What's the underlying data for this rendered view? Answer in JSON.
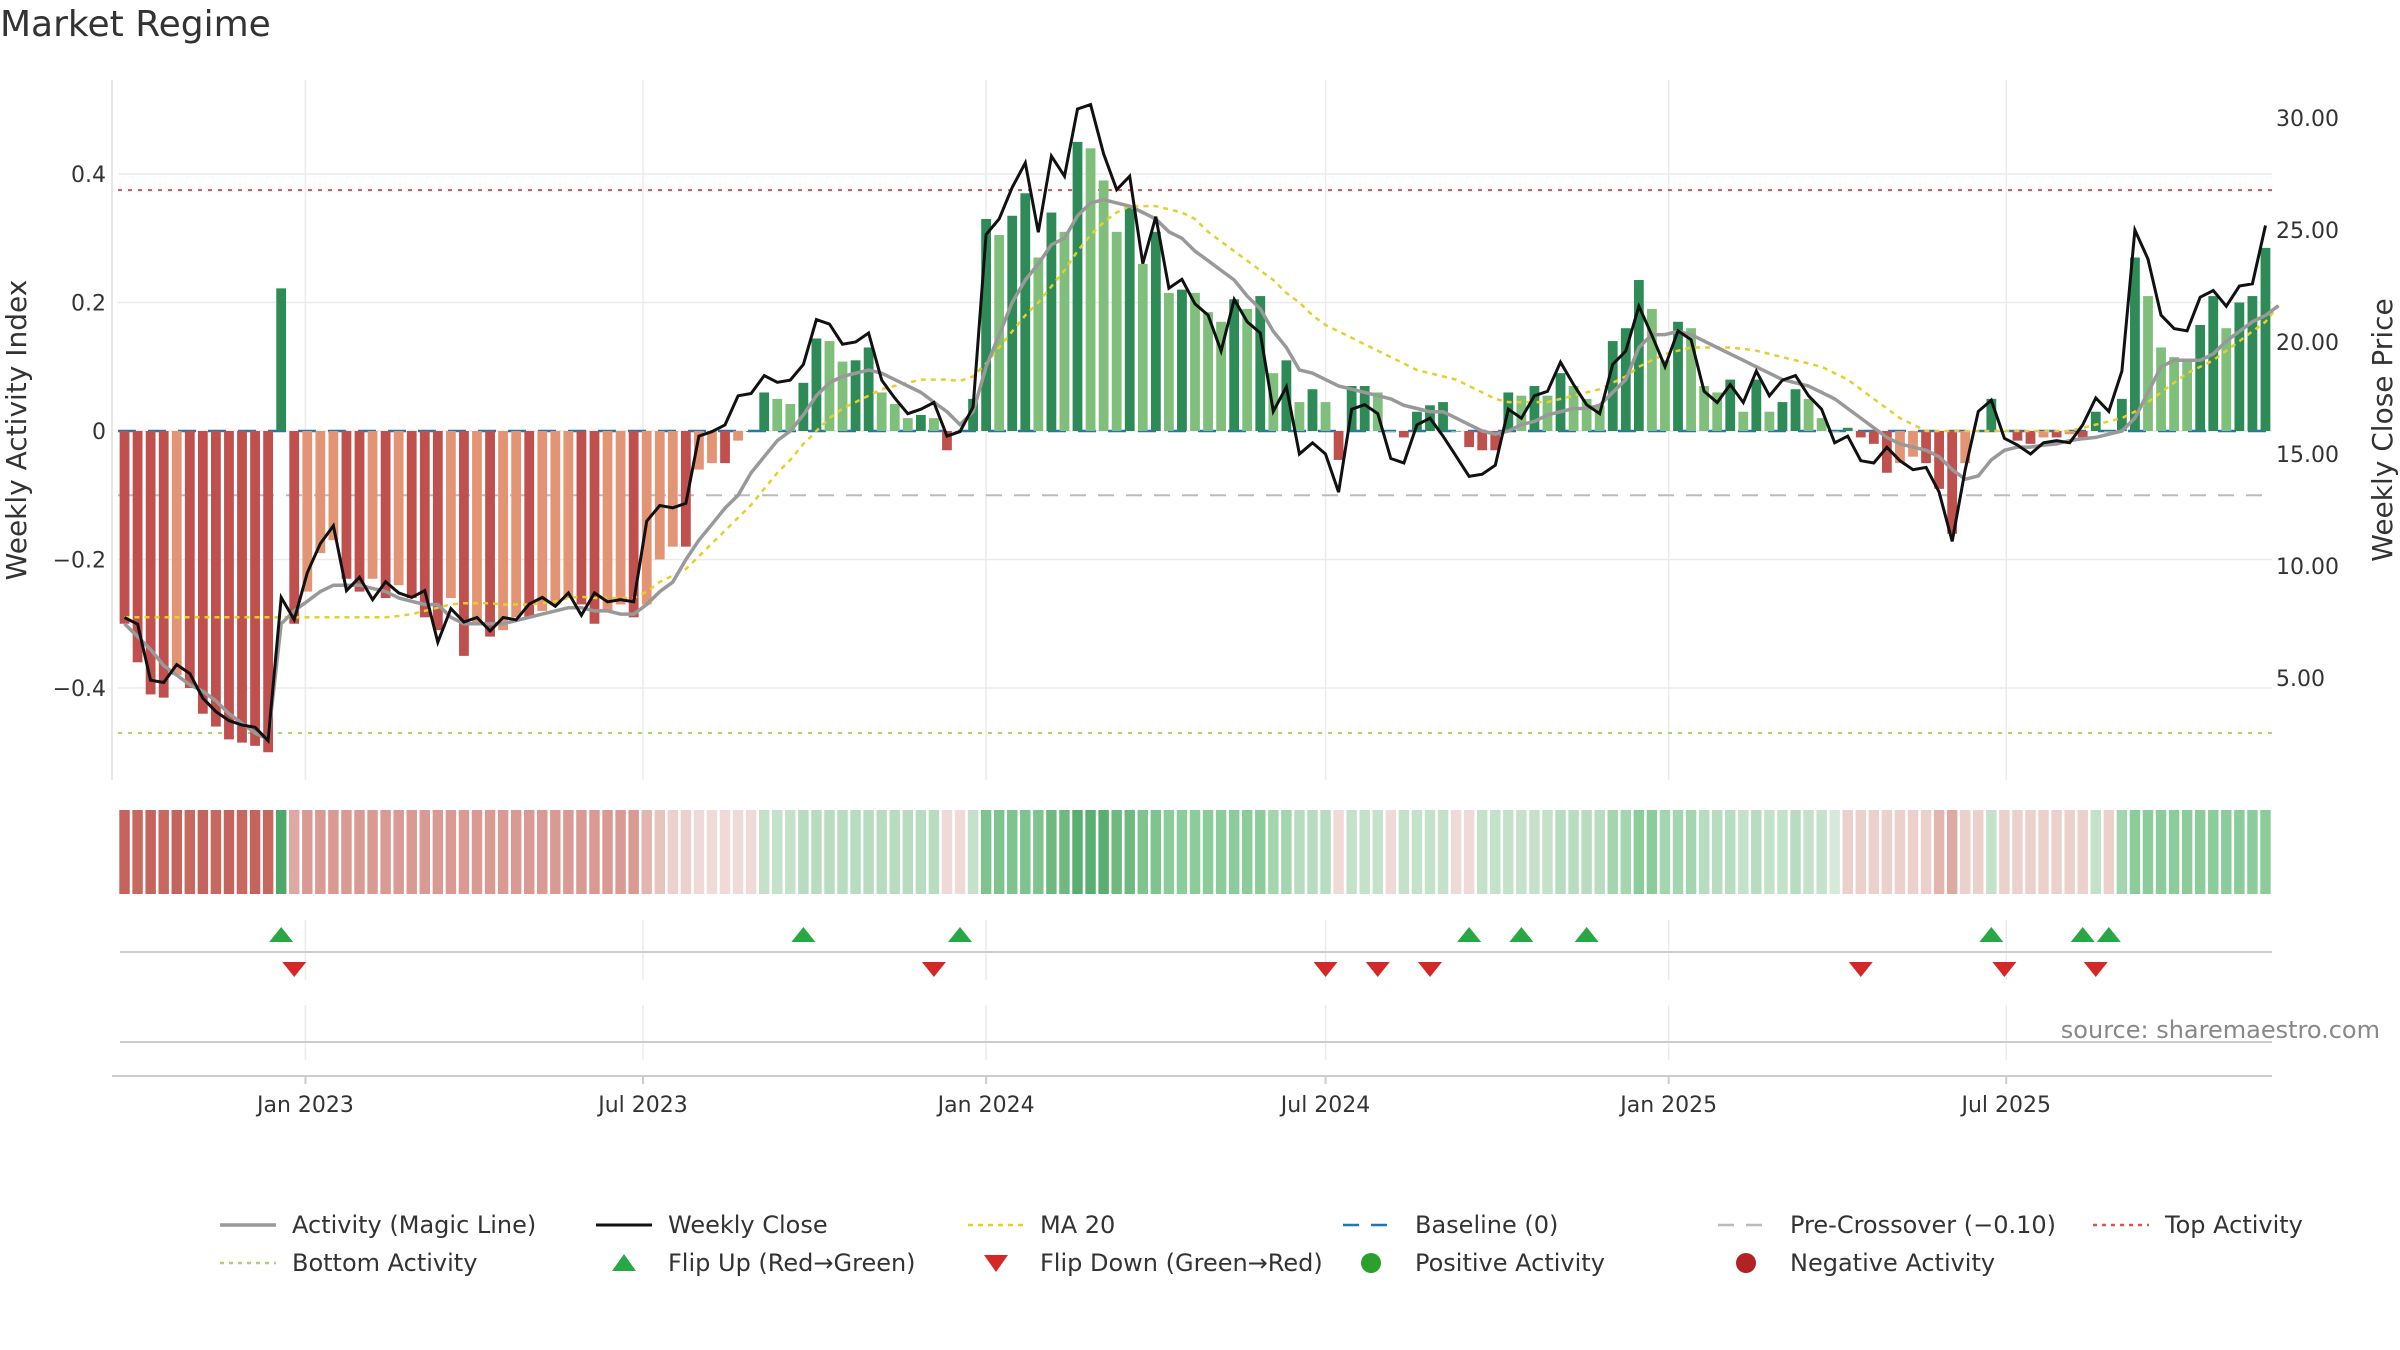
{
  "chart_data": {
    "type": "bar",
    "title": "Market Regime",
    "source": "source: sharemaestro.com",
    "ylabel_left": "Weekly Activity Index",
    "ylabel_right": "Weekly Close Price",
    "ylim_left": [
      -0.55,
      0.55
    ],
    "ylim_right": [
      0,
      32
    ],
    "left_ticks": [
      {
        "v": 0.4,
        "label": "0.4"
      },
      {
        "v": 0.2,
        "label": "0.2"
      },
      {
        "v": 0.0,
        "label": "0"
      },
      {
        "v": -0.2,
        "label": "−0.2"
      },
      {
        "v": -0.4,
        "label": "−0.4"
      }
    ],
    "right_ticks": [
      {
        "v": 30,
        "label": "30.00"
      },
      {
        "v": 25,
        "label": "25.00"
      },
      {
        "v": 20,
        "label": "20.00"
      },
      {
        "v": 15,
        "label": "15.00"
      },
      {
        "v": 10,
        "label": "10.00"
      },
      {
        "v": 5,
        "label": "5.00"
      }
    ],
    "x_start": "2022-09-26",
    "x_ticks": [
      {
        "date": "2023-01-01",
        "label": "Jan 2023"
      },
      {
        "date": "2023-07-01",
        "label": "Jul 2023"
      },
      {
        "date": "2024-01-01",
        "label": "Jan 2024"
      },
      {
        "date": "2024-07-01",
        "label": "Jul 2024"
      },
      {
        "date": "2025-01-01",
        "label": "Jan 2025"
      },
      {
        "date": "2025-07-01",
        "label": "Jul 2025"
      }
    ],
    "reference_lines": {
      "top_activity": 0.375,
      "bottom_activity": -0.47,
      "pre_crossover": -0.1,
      "baseline": 0
    },
    "activity": [
      -0.3,
      -0.36,
      -0.41,
      -0.415,
      -0.38,
      -0.4,
      -0.44,
      -0.46,
      -0.48,
      -0.485,
      -0.49,
      -0.5,
      0.222,
      -0.3,
      -0.25,
      -0.19,
      -0.17,
      -0.23,
      -0.25,
      -0.23,
      -0.26,
      -0.24,
      -0.26,
      -0.29,
      -0.31,
      -0.26,
      -0.35,
      -0.3,
      -0.32,
      -0.31,
      -0.29,
      -0.29,
      -0.28,
      -0.27,
      -0.26,
      -0.27,
      -0.3,
      -0.28,
      -0.27,
      -0.29,
      -0.27,
      -0.2,
      -0.18,
      -0.18,
      -0.06,
      -0.05,
      -0.05,
      -0.015,
      0.0,
      0.06,
      0.05,
      0.042,
      0.075,
      0.144,
      0.14,
      0.108,
      0.11,
      0.13,
      0.06,
      0.042,
      0.02,
      0.025,
      0.02,
      -0.03,
      0.0,
      0.05,
      0.33,
      0.305,
      0.335,
      0.37,
      0.27,
      0.34,
      0.31,
      0.45,
      0.44,
      0.39,
      0.31,
      0.35,
      0.26,
      0.31,
      0.215,
      0.22,
      0.215,
      0.185,
      0.17,
      0.205,
      0.19,
      0.21,
      0.09,
      0.11,
      0.045,
      0.065,
      0.045,
      -0.045,
      0.07,
      0.07,
      0.06,
      0.0,
      -0.01,
      0.03,
      0.04,
      0.045,
      0.0,
      -0.025,
      -0.03,
      -0.03,
      0.06,
      0.055,
      0.07,
      0.055,
      0.09,
      0.07,
      0.05,
      0.04,
      0.14,
      0.16,
      0.235,
      0.19,
      0.11,
      0.17,
      0.16,
      0.07,
      0.06,
      0.08,
      0.03,
      0.08,
      0.03,
      0.045,
      0.065,
      0.05,
      0.02,
      0.0,
      0.005,
      -0.01,
      -0.02,
      -0.065,
      -0.05,
      -0.04,
      -0.05,
      -0.09,
      -0.16,
      -0.05,
      0.0,
      0.05,
      0.0,
      -0.015,
      -0.02,
      -0.01,
      -0.01,
      -0.005,
      -0.01,
      0.03,
      0.0,
      0.05,
      0.27,
      0.21,
      0.13,
      0.115,
      0.11,
      0.165,
      0.21,
      0.16,
      0.2,
      0.21,
      0.285
    ],
    "magic_line": [
      -0.3,
      -0.32,
      -0.34,
      -0.365,
      -0.38,
      -0.395,
      -0.405,
      -0.42,
      -0.44,
      -0.455,
      -0.47,
      -0.48,
      -0.3,
      -0.28,
      -0.265,
      -0.25,
      -0.24,
      -0.24,
      -0.24,
      -0.245,
      -0.25,
      -0.26,
      -0.265,
      -0.27,
      -0.27,
      -0.29,
      -0.3,
      -0.3,
      -0.3,
      -0.3,
      -0.295,
      -0.29,
      -0.285,
      -0.28,
      -0.275,
      -0.275,
      -0.28,
      -0.28,
      -0.285,
      -0.285,
      -0.27,
      -0.25,
      -0.235,
      -0.2,
      -0.17,
      -0.145,
      -0.12,
      -0.1,
      -0.065,
      -0.04,
      -0.015,
      0.0,
      0.025,
      0.055,
      0.075,
      0.085,
      0.09,
      0.095,
      0.09,
      0.08,
      0.07,
      0.06,
      0.045,
      0.03,
      0.01,
      0.03,
      0.1,
      0.15,
      0.2,
      0.235,
      0.26,
      0.29,
      0.3,
      0.335,
      0.355,
      0.36,
      0.355,
      0.35,
      0.34,
      0.33,
      0.31,
      0.3,
      0.28,
      0.265,
      0.25,
      0.235,
      0.21,
      0.19,
      0.155,
      0.13,
      0.095,
      0.09,
      0.08,
      0.07,
      0.065,
      0.06,
      0.055,
      0.05,
      0.04,
      0.035,
      0.03,
      0.03,
      0.02,
      0.01,
      0.0,
      -0.005,
      0.0,
      0.01,
      0.015,
      0.025,
      0.03,
      0.035,
      0.035,
      0.04,
      0.06,
      0.08,
      0.13,
      0.15,
      0.15,
      0.155,
      0.15,
      0.14,
      0.13,
      0.12,
      0.11,
      0.1,
      0.09,
      0.08,
      0.075,
      0.07,
      0.06,
      0.05,
      0.035,
      0.02,
      0.005,
      -0.01,
      -0.02,
      -0.025,
      -0.03,
      -0.04,
      -0.06,
      -0.075,
      -0.07,
      -0.045,
      -0.03,
      -0.025,
      -0.025,
      -0.022,
      -0.02,
      -0.015,
      -0.012,
      -0.01,
      -0.005,
      0.0,
      0.02,
      0.06,
      0.1,
      0.11,
      0.11,
      0.11,
      0.12,
      0.14,
      0.155,
      0.17,
      0.18,
      0.195
    ],
    "ma20": [
      -0.29,
      -0.29,
      -0.29,
      -0.29,
      -0.29,
      -0.29,
      -0.29,
      -0.29,
      -0.29,
      -0.29,
      -0.29,
      -0.29,
      -0.29,
      -0.29,
      -0.29,
      -0.29,
      -0.29,
      -0.29,
      -0.29,
      -0.29,
      -0.29,
      -0.288,
      -0.285,
      -0.28,
      -0.275,
      -0.27,
      -0.268,
      -0.268,
      -0.268,
      -0.27,
      -0.27,
      -0.27,
      -0.268,
      -0.265,
      -0.26,
      -0.258,
      -0.26,
      -0.26,
      -0.26,
      -0.26,
      -0.25,
      -0.235,
      -0.225,
      -0.215,
      -0.195,
      -0.175,
      -0.155,
      -0.135,
      -0.115,
      -0.09,
      -0.065,
      -0.045,
      -0.02,
      0.0,
      0.02,
      0.035,
      0.045,
      0.055,
      0.065,
      0.07,
      0.075,
      0.08,
      0.08,
      0.08,
      0.078,
      0.085,
      0.105,
      0.13,
      0.155,
      0.18,
      0.2,
      0.225,
      0.25,
      0.28,
      0.305,
      0.325,
      0.34,
      0.35,
      0.35,
      0.35,
      0.345,
      0.34,
      0.33,
      0.31,
      0.295,
      0.28,
      0.265,
      0.25,
      0.235,
      0.215,
      0.2,
      0.18,
      0.165,
      0.155,
      0.145,
      0.135,
      0.125,
      0.115,
      0.105,
      0.095,
      0.09,
      0.085,
      0.08,
      0.07,
      0.06,
      0.05,
      0.045,
      0.045,
      0.045,
      0.045,
      0.05,
      0.055,
      0.06,
      0.065,
      0.075,
      0.085,
      0.1,
      0.11,
      0.12,
      0.125,
      0.13,
      0.13,
      0.13,
      0.13,
      0.128,
      0.125,
      0.12,
      0.115,
      0.11,
      0.105,
      0.1,
      0.09,
      0.08,
      0.065,
      0.05,
      0.035,
      0.02,
      0.01,
      0.0,
      0.0,
      0.0,
      0.0,
      0.0,
      0.0,
      0.0,
      0.0,
      0.0,
      0.0,
      0.0,
      0.0,
      0.005,
      0.01,
      0.015,
      0.02,
      0.03,
      0.045,
      0.06,
      0.075,
      0.09,
      0.1,
      0.11,
      0.125,
      0.14,
      0.155,
      0.17,
      0.195
    ],
    "weekly_close": [
      7.7,
      7.4,
      4.9,
      4.8,
      5.6,
      5.2,
      4.1,
      3.5,
      3.1,
      2.9,
      2.8,
      2.2,
      8.6,
      7.6,
      9.7,
      11.0,
      11.8,
      8.9,
      9.5,
      8.5,
      9.3,
      8.8,
      8.6,
      8.9,
      6.6,
      8.1,
      7.5,
      7.7,
      7.1,
      7.7,
      7.6,
      8.3,
      8.6,
      8.2,
      8.8,
      7.8,
      8.8,
      8.4,
      8.5,
      8.4,
      12.0,
      12.7,
      12.6,
      12.8,
      15.8,
      16.0,
      16.3,
      17.6,
      17.7,
      18.5,
      18.2,
      18.3,
      19.0,
      21.0,
      20.8,
      19.9,
      20.0,
      20.4,
      18.3,
      17.5,
      16.8,
      17.0,
      17.3,
      15.8,
      16.0,
      17.1,
      24.8,
      25.5,
      26.9,
      28.0,
      24.9,
      28.3,
      27.4,
      30.4,
      30.6,
      28.4,
      26.8,
      27.4,
      23.5,
      25.6,
      22.4,
      22.8,
      21.7,
      21.2,
      19.6,
      21.9,
      20.9,
      20.4,
      16.9,
      18.0,
      15.0,
      15.5,
      15.0,
      13.3,
      17.0,
      17.2,
      16.8,
      14.8,
      14.6,
      16.3,
      16.6,
      15.8,
      14.9,
      14.0,
      14.1,
      14.5,
      17.0,
      16.6,
      17.6,
      17.8,
      19.1,
      18.1,
      17.2,
      16.8,
      19.0,
      19.6,
      21.6,
      20.3,
      18.9,
      20.5,
      20.1,
      17.8,
      17.3,
      18.1,
      17.3,
      18.7,
      17.6,
      18.3,
      18.5,
      17.6,
      17.0,
      15.5,
      15.8,
      14.7,
      14.6,
      15.3,
      14.7,
      14.3,
      14.4,
      13.3,
      11.1,
      14.3,
      16.9,
      17.4,
      15.7,
      15.4,
      15.0,
      15.5,
      15.6,
      15.5,
      16.3,
      17.5,
      16.9,
      18.7,
      25.0,
      23.7,
      21.2,
      20.6,
      20.5,
      22.0,
      22.3,
      21.6,
      22.5,
      22.6,
      25.2
    ],
    "regime_strip_colors": [
      "#c5645c",
      "#c8695f",
      "#c5645c",
      "#c8695f",
      "#c5645c",
      "#c8695f",
      "#c5645c",
      "#c8695f",
      "#c5645c",
      "#c8695f",
      "#c5645c",
      "#c8695f",
      "#4fa76a",
      "#e0a8a2",
      "#d89a92",
      "#d89a92",
      "#d89a92",
      "#d89a92",
      "#d89a92",
      "#d89a92",
      "#d89a92",
      "#d89a92",
      "#d89a92",
      "#d89a92",
      "#d89a92",
      "#d89a92",
      "#d89a92",
      "#d89a92",
      "#d89a92",
      "#d89a92",
      "#d89a92",
      "#d89a92",
      "#d89a92",
      "#d89a92",
      "#d89a92",
      "#d89a92",
      "#d89a92",
      "#d89a92",
      "#d89a92",
      "#d89a92",
      "#e3b5af",
      "#e8c4bf",
      "#ecd0cc",
      "#ecd0cc",
      "#f0dad8",
      "#f0dad8",
      "#f0dad8",
      "#f0dad8",
      "#f0dad8",
      "#c4e2c9",
      "#c4e2c9",
      "#c4e2c9",
      "#b8dcbf",
      "#b8dcbf",
      "#b8dcbf",
      "#b8dcbf",
      "#b8dcbf",
      "#b8dcbf",
      "#b8dcbf",
      "#b8dcbf",
      "#b8dcbf",
      "#b8dcbf",
      "#b8dcbf",
      "#f0dad8",
      "#f0dad8",
      "#c4e2c9",
      "#7fc38f",
      "#7fc38f",
      "#7fc38f",
      "#7fc38f",
      "#7fc38f",
      "#6fb981",
      "#6fb981",
      "#5aae70",
      "#5aae70",
      "#5aae70",
      "#6fb981",
      "#6fb981",
      "#7fc38f",
      "#7fc38f",
      "#8ccc9b",
      "#8ccc9b",
      "#8ccc9b",
      "#8ccc9b",
      "#8ccc9b",
      "#8ccc9b",
      "#8ccc9b",
      "#8ccc9b",
      "#a3d6af",
      "#a3d6af",
      "#b8dcbf",
      "#b8dcbf",
      "#b8dcbf",
      "#f0dad8",
      "#c4e2c9",
      "#c4e2c9",
      "#c4e2c9",
      "#f0dad8",
      "#c4e2c9",
      "#c4e2c9",
      "#c4e2c9",
      "#c4e2c9",
      "#f0dad8",
      "#f0dad8",
      "#c4e2c9",
      "#c4e2c9",
      "#c4e2c9",
      "#c4e2c9",
      "#c4e2c9",
      "#c4e2c9",
      "#b8dcbf",
      "#b8dcbf",
      "#b8dcbf",
      "#b8dcbf",
      "#a3d6af",
      "#a3d6af",
      "#8ccc9b",
      "#8ccc9b",
      "#a3d6af",
      "#a3d6af",
      "#a3d6af",
      "#b8dcbf",
      "#b8dcbf",
      "#b8dcbf",
      "#c4e2c9",
      "#b8dcbf",
      "#c4e2c9",
      "#c4e2c9",
      "#b8dcbf",
      "#c4e2c9",
      "#c4e2c9",
      "#d6ead9",
      "#ecd0cc",
      "#ecd0cc",
      "#ecd0cc",
      "#ecd0cc",
      "#ecd0cc",
      "#ecd0cc",
      "#ecd0cc",
      "#e3b5af",
      "#ddaaa3",
      "#ecd0cc",
      "#ecd0cc",
      "#c4e2c9",
      "#ecd0cc",
      "#ecd0cc",
      "#ecd0cc",
      "#ecd0cc",
      "#ecd0cc",
      "#ecd0cc",
      "#ecd0cc",
      "#c4e2c9",
      "#ecd0cc",
      "#a3d6af",
      "#8ccc9b",
      "#8ccc9b",
      "#8ccc9b",
      "#8ccc9b",
      "#8ccc9b",
      "#8ccc9b",
      "#8ccc9b",
      "#8ccc9b",
      "#8ccc9b",
      "#8ccc9b",
      "#8ccc9b"
    ],
    "flip_up_weeks": [
      12,
      52,
      64,
      103,
      107,
      112,
      143,
      150,
      152
    ],
    "flip_down_weeks": [
      13,
      62,
      92,
      96,
      100,
      133,
      144,
      151
    ],
    "colors": {
      "strong_pos": "#2e8b57",
      "light_pos": "#7fbf7b",
      "strong_neg": "#c0504d",
      "light_neg": "#e39475",
      "weekly_close": "#111111",
      "magic_line": "#999999",
      "ma20": "#e6cf2a",
      "baseline": "#1f77b4",
      "pre_crossover": "#bbbbbb",
      "top_activity": "#d9534f",
      "bottom_activity": "#a8d66a",
      "flip_up": "#28a745",
      "flip_down": "#d62728",
      "positive_dot": "#2ca02c",
      "negative_dot": "#b22222"
    },
    "legend": [
      {
        "key": "magic",
        "label": "Activity (Magic Line)"
      },
      {
        "key": "close",
        "label": "Weekly Close"
      },
      {
        "key": "ma20",
        "label": "MA 20"
      },
      {
        "key": "baseline",
        "label": "Baseline (0)"
      },
      {
        "key": "pre",
        "label": "Pre-Crossover (−0.10)"
      },
      {
        "key": "top",
        "label": "Top Activity"
      },
      {
        "key": "bottom",
        "label": "Bottom Activity"
      },
      {
        "key": "flipup",
        "label": "Flip Up (Red→Green)"
      },
      {
        "key": "flipdown",
        "label": "Flip Down (Green→Red)"
      },
      {
        "key": "posdot",
        "label": "Positive Activity"
      },
      {
        "key": "negdot",
        "label": "Negative Activity"
      }
    ]
  }
}
